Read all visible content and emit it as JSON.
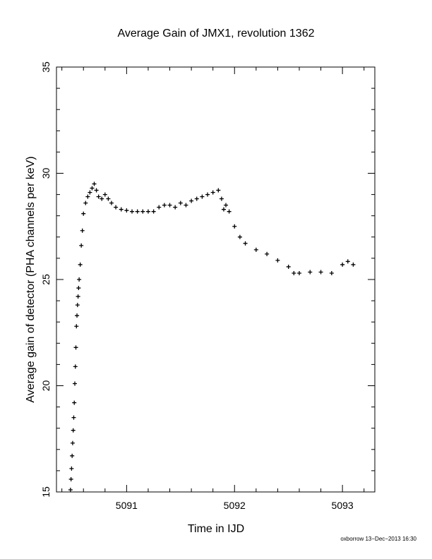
{
  "chart_data": {
    "type": "scatter",
    "title": "Average Gain of JMX1, revolution 1362",
    "xlabel": "Time in IJD",
    "ylabel": "Average gain of detector (PHA channels per keV)",
    "xlim": [
      5090.35,
      5093.3
    ],
    "ylim": [
      15,
      35
    ],
    "xticks": [
      5091,
      5092,
      5093
    ],
    "xtick_labels": [
      "5091",
      "5092",
      "5093"
    ],
    "yticks": [
      15,
      20,
      25,
      30,
      35
    ],
    "ytick_labels": [
      "15",
      "20",
      "25",
      "30",
      "35"
    ],
    "marker": "plus",
    "grid": false,
    "series": [
      {
        "x": [
          5090.48,
          5090.485,
          5090.49,
          5090.495,
          5090.5,
          5090.505,
          5090.51,
          5090.515,
          5090.52,
          5090.525,
          5090.53,
          5090.535,
          5090.54,
          5090.545,
          5090.55,
          5090.555,
          5090.56,
          5090.57,
          5090.58,
          5090.59,
          5090.6,
          5090.62,
          5090.64,
          5090.66,
          5090.68,
          5090.7,
          5090.72,
          5090.74,
          5090.77,
          5090.8,
          5090.83,
          5090.86,
          5090.9,
          5090.95,
          5091.0,
          5091.05,
          5091.1,
          5091.15,
          5091.2,
          5091.25,
          5091.3,
          5091.35,
          5091.4,
          5091.45,
          5091.5,
          5091.55,
          5091.6,
          5091.65,
          5091.7,
          5091.75,
          5091.8,
          5091.85,
          5091.88,
          5091.9,
          5091.92,
          5091.95,
          5092.0,
          5092.05,
          5092.1,
          5092.2,
          5092.3,
          5092.4,
          5092.5,
          5092.55,
          5092.6,
          5092.7,
          5092.8,
          5092.9,
          5093.0,
          5093.05,
          5093.1
        ],
        "y": [
          15.1,
          15.6,
          16.1,
          16.7,
          17.3,
          17.9,
          18.5,
          19.2,
          20.1,
          20.9,
          21.8,
          22.8,
          23.3,
          23.8,
          24.2,
          24.6,
          25.0,
          25.7,
          26.6,
          27.3,
          28.1,
          28.6,
          28.9,
          29.1,
          29.3,
          29.5,
          29.2,
          28.9,
          28.8,
          29.0,
          28.8,
          28.6,
          28.4,
          28.3,
          28.25,
          28.2,
          28.2,
          28.2,
          28.2,
          28.2,
          28.4,
          28.5,
          28.5,
          28.4,
          28.6,
          28.5,
          28.7,
          28.8,
          28.9,
          29.0,
          29.1,
          29.2,
          28.8,
          28.3,
          28.5,
          28.2,
          27.5,
          27.0,
          26.7,
          26.4,
          26.2,
          25.9,
          25.6,
          25.3,
          25.3,
          25.35,
          25.35,
          25.3,
          25.7,
          25.85,
          25.7
        ]
      }
    ]
  },
  "footer": {
    "text": "oxborrow 13−Dec−2013 16:30"
  }
}
